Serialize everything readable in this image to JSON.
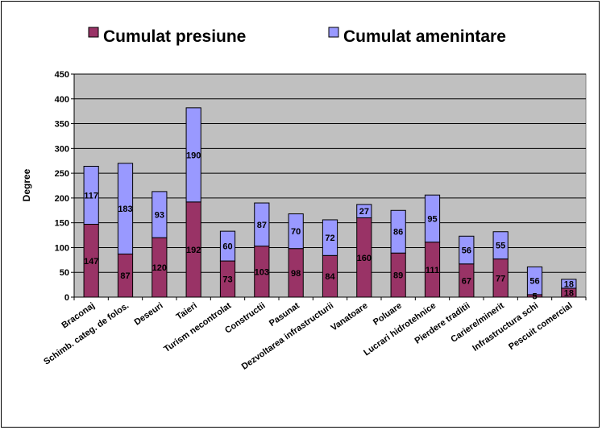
{
  "chart_data": {
    "type": "bar",
    "stacked": true,
    "ylabel": "Degree",
    "xlabel": "",
    "ylim": [
      0,
      450
    ],
    "yticks": [
      0,
      50,
      100,
      150,
      200,
      250,
      300,
      350,
      400,
      450
    ],
    "grid": true,
    "legend_position": "top",
    "colors": {
      "plot_bg": "#c0c0c0",
      "presiune": "#993366",
      "amenintare": "#9999ff",
      "grid": "#000000"
    },
    "categories": [
      "Braconaj",
      "Schimb. categ. de folos.",
      "Deseuri",
      "Taieri",
      "Turism necontrolat",
      "Constructii",
      "Pasunat",
      "Dezvoltarea infrastructurii",
      "Vanatoare",
      "Poluare",
      "Lucrari hidrotehnice",
      "Pierdere traditii",
      "Cariere/minerit",
      "Infrastructura schi",
      "Pescuit comercial"
    ],
    "series": [
      {
        "name": "Cumulat presiune",
        "values": [
          147,
          87,
          120,
          192,
          73,
          103,
          98,
          84,
          160,
          89,
          111,
          67,
          77,
          5,
          18
        ]
      },
      {
        "name": "Cumulat amenintare",
        "values": [
          117,
          183,
          93,
          190,
          60,
          87,
          70,
          72,
          27,
          86,
          95,
          56,
          55,
          56,
          18
        ]
      }
    ]
  }
}
